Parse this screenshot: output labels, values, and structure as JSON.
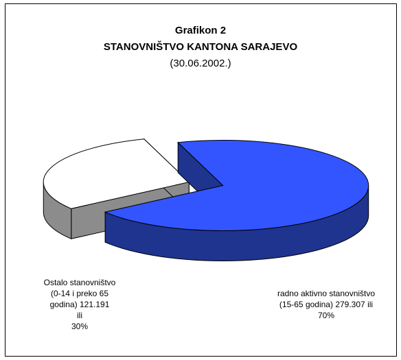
{
  "chart_data": {
    "type": "pie",
    "title": "Grafikon 2",
    "subtitle": "STANOVNIŠTVO KANTONA SARAJEVO",
    "date": "(30.06.2002.)",
    "categories": [
      "radno aktivno stanovništvo (15-65 godina)",
      "Ostalo stanovništvo (0-14 i preko 65 godina)"
    ],
    "values": [
      70,
      30
    ],
    "value_labels": [
      "70%",
      "30%"
    ],
    "counts": [
      279307,
      121191
    ],
    "count_labels": [
      "279.307",
      "121.191"
    ],
    "label_joiner": "ili",
    "colors": [
      "#3355ff",
      "#ffffff"
    ],
    "side_colors": [
      "#1f348f",
      "#8c8c8c"
    ]
  }
}
